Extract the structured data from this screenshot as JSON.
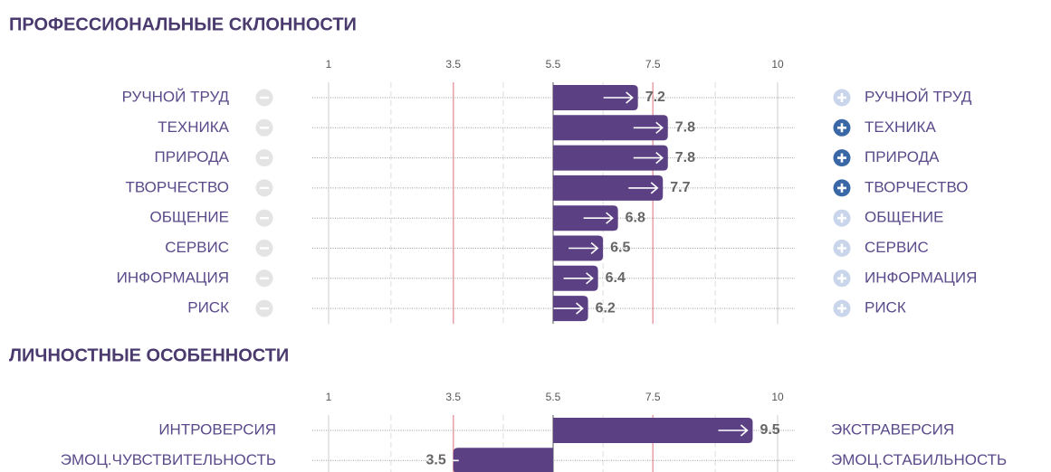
{
  "chart_data": [
    {
      "type": "bar",
      "title": "ПРОФЕССИОНАЛЬНЫЕ СКЛОННОСТИ",
      "categories": [
        "РУЧНОЙ ТРУД",
        "ТЕХНИКА",
        "ПРИРОДА",
        "ТВОРЧЕСТВО",
        "ОБЩЕНИЕ",
        "СЕРВИС",
        "ИНФОРМАЦИЯ",
        "РИСК"
      ],
      "right_labels": [
        "РУЧНОЙ ТРУД",
        "ТЕХНИКА",
        "ПРИРОДА",
        "ТВОРЧЕСТВО",
        "ОБЩЕНИЕ",
        "СЕРВИС",
        "ИНФОРМАЦИЯ",
        "РИСК"
      ],
      "values": [
        7.2,
        7.8,
        7.8,
        7.7,
        6.8,
        6.5,
        6.4,
        6.2
      ],
      "highlighted": [
        false,
        true,
        true,
        true,
        false,
        false,
        false,
        false
      ],
      "baseline": 5.5,
      "xlim": [
        1,
        10
      ],
      "xticks": [
        1,
        3.5,
        5.5,
        7.5,
        10
      ],
      "reference_lines": [
        3.5,
        7.5
      ],
      "color": "#5b4083"
    },
    {
      "type": "bar",
      "title": "ЛИЧНОСТНЫЕ ОСОБЕННОСТИ",
      "categories": [
        "ИНТРОВЕРСИЯ",
        "ЭМОЦ.ЧУВСТВИТЕЛЬНОСТЬ"
      ],
      "right_labels": [
        "ЭКСТРАВЕРСИЯ",
        "ЭМОЦ.СТАБИЛЬНОСТЬ"
      ],
      "values": [
        9.5,
        3.5
      ],
      "baseline": 5.5,
      "xlim": [
        1,
        10
      ],
      "xticks": [
        1,
        3.5,
        5.5,
        7.5,
        10
      ],
      "reference_lines": [
        3.5,
        7.5
      ],
      "color": "#5b4083"
    }
  ]
}
